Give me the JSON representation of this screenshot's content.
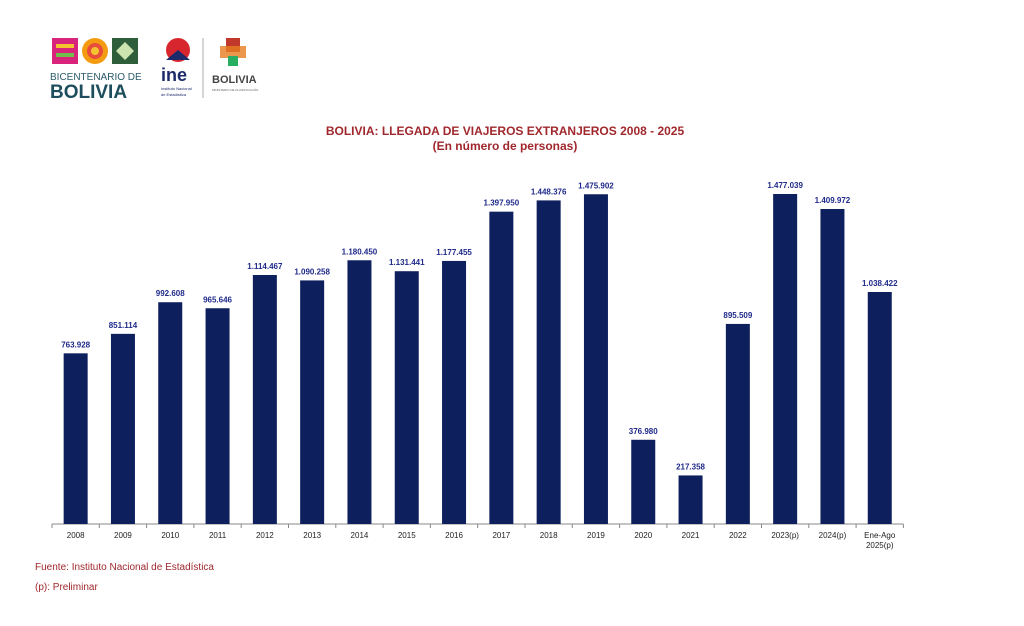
{
  "logos": {
    "bicentenario": "BICENTENARIO DE BOLIVIA",
    "ine": "ine",
    "ine_sub": "Instituto Nacional de Estadística",
    "ministry": "ESTADO PLURINACIONAL DE BOLIVIA - MINISTERIO DE PLANIFICACIÓN DEL DESARROLLO"
  },
  "chart_data": {
    "type": "bar",
    "title": "BOLIVIA: LLEGADA DE VIAJEROS EXTRANJEROS  2008 - 2025",
    "subtitle": "(En número de personas)",
    "xlabel": "",
    "ylabel": "",
    "categories": [
      "2008",
      "2009",
      "2010",
      "2011",
      "2012",
      "2013",
      "2014",
      "2015",
      "2016",
      "2017",
      "2018",
      "2019",
      "2020",
      "2021",
      "2022",
      "2023(p)",
      "2024(p)",
      "Ene-Ago 2025(p)"
    ],
    "values": [
      763928,
      851114,
      992608,
      965646,
      1114467,
      1090258,
      1180450,
      1131441,
      1177455,
      1397950,
      1448376,
      1475902,
      376980,
      217358,
      895509,
      1477039,
      1409972,
      1038422
    ],
    "labels": [
      "763.928",
      "851.114",
      "992.608",
      "965.646",
      "1.114.467",
      "1.090.258",
      "1.180.450",
      "1.131.441",
      "1.177.455",
      "1.397.950",
      "1.448.376",
      "1.475.902",
      "376.980",
      "217.358",
      "895.509",
      "1.477.039",
      "1.409.972",
      "1.038.422"
    ],
    "ylim": [
      0,
      1477039
    ],
    "grid": false,
    "colors": {
      "bar": "#0d1f5c",
      "label": "#1f2a8a",
      "title": "#a0282d"
    }
  },
  "footer": {
    "source": "Fuente: Instituto Nacional de Estadística",
    "note": "(p): Preliminar"
  }
}
